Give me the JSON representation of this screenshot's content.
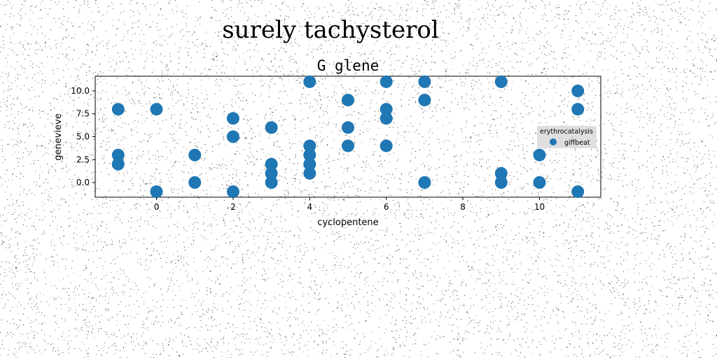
{
  "figure": {
    "suptitle": "surely tachysterol"
  },
  "colors": {
    "series": "#1f77b4",
    "background": "#ffffff",
    "legend_bg": "#d9d9d9"
  },
  "chart_data": {
    "type": "scatter",
    "title": "G glene",
    "xlabel": "cyclopentene",
    "ylabel": "genevieve",
    "xlim": [
      -1.6,
      11.6
    ],
    "ylim": [
      -1.6,
      11.6
    ],
    "xticks": [
      0,
      2,
      4,
      6,
      8,
      10
    ],
    "yticks": [
      0.0,
      2.5,
      5.0,
      7.5,
      10.0
    ],
    "xtick_labels": [
      "0",
      "2",
      "4",
      "6",
      "8",
      "10"
    ],
    "ytick_labels": [
      "0.0",
      "2.5",
      "5.0",
      "7.5",
      "10.0"
    ],
    "grid": false,
    "legend": {
      "title": "erythrocatalysis",
      "placement": "center-right",
      "entries": [
        "giffbeat"
      ]
    },
    "series": [
      {
        "name": "giffbeat",
        "points": [
          [
            -1,
            8
          ],
          [
            -1,
            3
          ],
          [
            -1,
            2
          ],
          [
            0,
            8
          ],
          [
            0,
            -1
          ],
          [
            1,
            3
          ],
          [
            1,
            0
          ],
          [
            2,
            7
          ],
          [
            2,
            5
          ],
          [
            2,
            -1
          ],
          [
            3,
            6
          ],
          [
            3,
            2
          ],
          [
            3,
            1
          ],
          [
            3,
            0
          ],
          [
            4,
            11
          ],
          [
            4,
            4
          ],
          [
            4,
            3
          ],
          [
            4,
            2
          ],
          [
            4,
            1
          ],
          [
            5,
            9
          ],
          [
            5,
            6
          ],
          [
            5,
            4
          ],
          [
            6,
            11
          ],
          [
            6,
            8
          ],
          [
            6,
            7
          ],
          [
            6,
            4
          ],
          [
            7,
            11
          ],
          [
            7,
            9
          ],
          [
            7,
            0
          ],
          [
            9,
            11
          ],
          [
            9,
            1
          ],
          [
            9,
            0
          ],
          [
            10,
            3
          ],
          [
            10,
            0
          ],
          [
            11,
            10
          ],
          [
            11,
            8
          ],
          [
            11,
            -1
          ]
        ]
      }
    ]
  }
}
